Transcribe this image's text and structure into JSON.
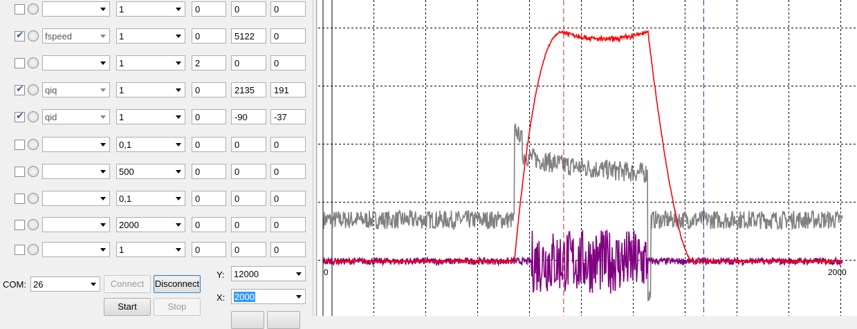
{
  "channels": [
    {
      "checked": false,
      "variable": "",
      "scale": "1",
      "offset": "0",
      "value": "0",
      "extra": "0"
    },
    {
      "checked": true,
      "variable": "fspeed",
      "scale": "1",
      "offset": "0",
      "value": "5122",
      "extra": "0"
    },
    {
      "checked": false,
      "variable": "",
      "scale": "1",
      "offset": "2",
      "value": "0",
      "extra": "0"
    },
    {
      "checked": true,
      "variable": "qiq",
      "scale": "1",
      "offset": "0",
      "value": "2135",
      "extra": "191"
    },
    {
      "checked": true,
      "variable": "qid",
      "scale": "1",
      "offset": "0",
      "value": "-90",
      "extra": "-37"
    },
    {
      "checked": false,
      "variable": "",
      "scale": "0,1",
      "offset": "0",
      "value": "0",
      "extra": "0"
    },
    {
      "checked": false,
      "variable": "",
      "scale": "500",
      "offset": "0",
      "value": "0",
      "extra": "0"
    },
    {
      "checked": false,
      "variable": "",
      "scale": "0,1",
      "offset": "0",
      "value": "0",
      "extra": "0"
    },
    {
      "checked": false,
      "variable": "",
      "scale": "2000",
      "offset": "0",
      "value": "0",
      "extra": "0"
    },
    {
      "checked": false,
      "variable": "",
      "scale": "1",
      "offset": "0",
      "value": "0",
      "extra": "0"
    }
  ],
  "com": {
    "label": "COM:",
    "value": "26"
  },
  "buttons": {
    "connect": "Connect",
    "disconnect": "Disconnect",
    "start": "Start",
    "stop": "Stop"
  },
  "y_axis": {
    "label": "Y:",
    "value": "12000"
  },
  "x_axis": {
    "label": "X:",
    "value": "2000"
  },
  "chart_data": {
    "type": "line",
    "x_tick_labels": [
      "0",
      "2000"
    ],
    "xlim": [
      0,
      2000
    ],
    "grid": true,
    "cursors": [
      {
        "color": "#e02020",
        "x": 925
      },
      {
        "color": "#2020c0",
        "x": 1465
      }
    ],
    "series": [
      {
        "color": "#ff0000",
        "shape": "trapezoid pulse",
        "baseline": 0,
        "plateau": 4700,
        "rise_start": 735,
        "rise_end": 920,
        "fall_start": 1250,
        "fall_end": 1420
      },
      {
        "color": "#808080",
        "shape": "noisy step",
        "baseline": 850,
        "peak": 2700,
        "level": 1950,
        "start": 735,
        "end": 1250
      },
      {
        "color": "#800080",
        "shape": "noise burst",
        "baseline": 0,
        "amplitude": 600,
        "start": 800,
        "end": 1250
      }
    ]
  }
}
